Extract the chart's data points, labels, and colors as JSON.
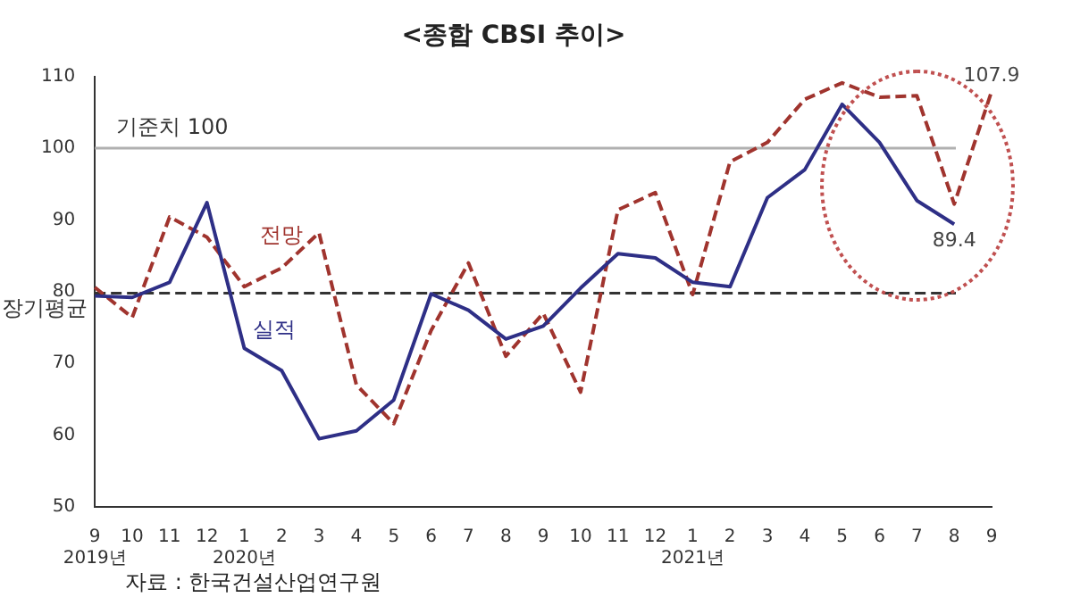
{
  "chart_data": {
    "type": "line",
    "title": "<종합 CBSI 추이>",
    "categories": [
      "9\n2019년",
      "10",
      "11",
      "12",
      "1\n2020년",
      "2",
      "3",
      "4",
      "5",
      "6",
      "7",
      "8",
      "9",
      "10",
      "11",
      "12",
      "1\n2021년",
      "2",
      "3",
      "4",
      "5",
      "6",
      "7",
      "8",
      "9"
    ],
    "series": [
      {
        "name": "실적",
        "color": "#2e2f86",
        "line_style": "solid",
        "values": [
          79.4,
          79.2,
          81.3,
          92.4,
          72.1,
          69.0,
          59.5,
          60.6,
          64.9,
          79.7,
          77.4,
          73.4,
          75.2,
          80.5,
          85.3,
          84.7,
          81.3,
          80.7,
          93.1,
          97.0,
          106.1,
          100.8,
          92.7,
          89.4,
          null
        ],
        "value_labels": [
          null,
          null,
          null,
          null,
          null,
          null,
          null,
          null,
          null,
          null,
          null,
          null,
          null,
          null,
          null,
          null,
          null,
          null,
          null,
          null,
          null,
          null,
          null,
          "89.4",
          null
        ]
      },
      {
        "name": "전망",
        "color": "#a0342e",
        "line_style": "dashed",
        "values": [
          80.6,
          76.4,
          90.4,
          87.6,
          80.7,
          83.3,
          88.2,
          67.0,
          61.6,
          74.6,
          84.0,
          71.0,
          77.0,
          66.0,
          91.4,
          93.8,
          79.6,
          98.1,
          100.8,
          106.8,
          109.1,
          107.1,
          107.3,
          92.2,
          107.9
        ],
        "value_labels": [
          null,
          null,
          null,
          null,
          null,
          null,
          null,
          null,
          null,
          null,
          null,
          null,
          null,
          null,
          null,
          null,
          null,
          null,
          null,
          null,
          null,
          null,
          null,
          null,
          "107.9"
        ]
      }
    ],
    "marker": "none",
    "ylim": [
      50,
      110
    ],
    "yticks": [
      50,
      60,
      70,
      80,
      90,
      100,
      110
    ],
    "ref_lines": [
      {
        "axis": "y",
        "value": 100,
        "label": "기준치 100",
        "color": "#b0b0b0",
        "line_style": "solid"
      },
      {
        "axis": "y",
        "value": 79.8,
        "label": "장기평균",
        "color": "#333333",
        "line_style": "dashed"
      }
    ],
    "annotations": [
      "자료 : 한국건설산업연구원"
    ]
  }
}
